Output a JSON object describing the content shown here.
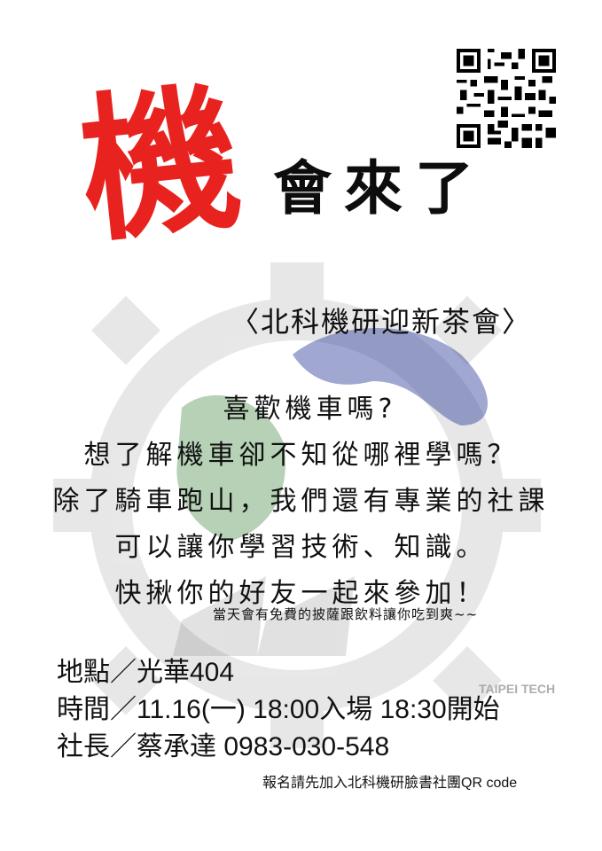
{
  "qr": {
    "icon": "qr-code-icon"
  },
  "headline": {
    "big_char": "機",
    "rest": "會來了",
    "big_char_color": "#e8231f"
  },
  "subtitle": "〈北科機研迎新茶會〉",
  "body_lines": [
    "喜歡機車嗎?",
    "想了解機車卻不知從哪裡學嗎？",
    "除了騎車跑山，我們還有專業的社課",
    "可以讓你學習技術、知識。",
    "快揪你的好友一起來參加！"
  ],
  "note": "當天會有免費的披薩跟飲料讓你吃到爽~~",
  "info": {
    "location": "地點／光華404",
    "time": "時間／11.16(一)  18:00入場  18:30開始",
    "president": "社長／蔡承達 0983-030-548"
  },
  "footer_note": "報名請先加入北科機研臉書社團QR code",
  "background_logo": {
    "icon": "gear-club-logo-icon",
    "text": "TAIPEI TECH"
  }
}
